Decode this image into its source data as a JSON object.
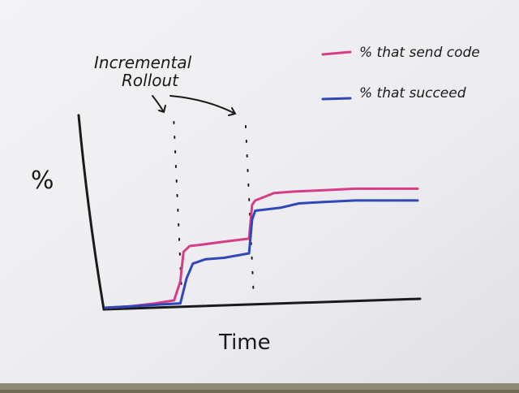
{
  "chart_data": {
    "type": "line",
    "title": "",
    "xlabel": "Time",
    "ylabel": "%",
    "ylim": [
      0,
      100
    ],
    "xlim": [
      0,
      100
    ],
    "grid": false,
    "legend": {
      "position": "top-right",
      "entries": [
        {
          "label": "% that send code",
          "color": "#d63d87"
        },
        {
          "label": "% that succeed",
          "color": "#3047b8"
        }
      ]
    },
    "annotations": [
      {
        "lines": [
          "Incremental",
          "Rollout"
        ],
        "markers_at_x": [
          24,
          47
        ]
      }
    ],
    "series": [
      {
        "name": "% that send code",
        "color": "#d63d87",
        "points": [
          [
            0,
            0
          ],
          [
            8,
            1
          ],
          [
            16,
            3
          ],
          [
            22,
            5
          ],
          [
            24,
            18
          ],
          [
            25,
            38
          ],
          [
            27,
            42
          ],
          [
            31,
            43
          ],
          [
            38,
            45
          ],
          [
            46,
            47
          ],
          [
            47,
            70
          ],
          [
            48,
            73
          ],
          [
            54,
            78
          ],
          [
            60,
            79
          ],
          [
            70,
            80
          ],
          [
            80,
            81
          ],
          [
            88,
            81
          ],
          [
            100,
            81
          ]
        ]
      },
      {
        "name": "% that succeed",
        "color": "#3047b8",
        "points": [
          [
            0,
            0
          ],
          [
            8,
            1
          ],
          [
            16,
            2
          ],
          [
            24,
            3
          ],
          [
            26,
            20
          ],
          [
            28,
            30
          ],
          [
            32,
            33
          ],
          [
            38,
            34
          ],
          [
            46,
            37
          ],
          [
            47,
            60
          ],
          [
            48,
            66
          ],
          [
            56,
            68
          ],
          [
            62,
            71
          ],
          [
            70,
            72
          ],
          [
            80,
            73
          ],
          [
            90,
            73
          ],
          [
            100,
            73
          ]
        ]
      }
    ]
  }
}
